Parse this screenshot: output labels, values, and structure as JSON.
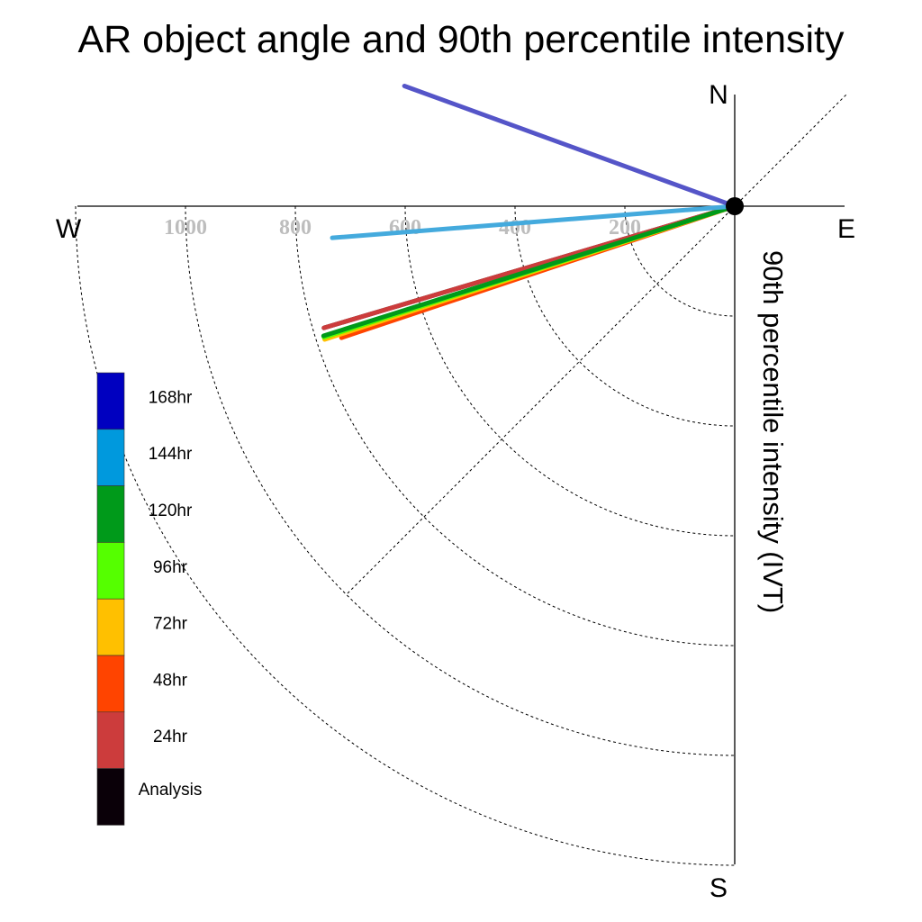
{
  "chart_data": {
    "type": "polar-vector",
    "title": "AR object angle and 90th percentile intensity",
    "ylabel": "90th percentile intensity (IVT)",
    "compass": {
      "north": "N",
      "south": "S",
      "east": "E",
      "west": "W"
    },
    "radial_ticks": [
      {
        "value": 200,
        "label": "200"
      },
      {
        "value": 400,
        "label": "400"
      },
      {
        "value": 600,
        "label": "600"
      },
      {
        "value": 800,
        "label": "800"
      },
      {
        "value": 1000,
        "label": "1000"
      }
    ],
    "radial_range": [
      0,
      1200
    ],
    "grid": true,
    "series": [
      {
        "name": "168hr",
        "color": "#0000c0",
        "line_color": "#5555c8",
        "angle_deg": 160,
        "intensity": 640
      },
      {
        "name": "144hr",
        "color": "#0099dd",
        "line_color": "#44aadd",
        "angle_deg": 184.5,
        "intensity": 735
      },
      {
        "name": "120hr",
        "color": "#009a1a",
        "line_color": "#009a1a",
        "angle_deg": 197.5,
        "intensity": 785
      },
      {
        "name": "96hr",
        "color": "#55ff00",
        "line_color": "#55ff00",
        "angle_deg": 197.7,
        "intensity": 785
      },
      {
        "name": "72hr",
        "color": "#ffc000",
        "line_color": "#ffc000",
        "angle_deg": 198,
        "intensity": 785
      },
      {
        "name": "48hr",
        "color": "#ff4400",
        "line_color": "#ff4400",
        "angle_deg": 198.5,
        "intensity": 755
      },
      {
        "name": "24hr",
        "color": "#cc3c3c",
        "line_color": "#cc3c3c",
        "angle_deg": 196.5,
        "intensity": 780
      },
      {
        "name": "Analysis",
        "color": "#0a0008",
        "line_color": "#222222",
        "angle_deg": 196.5,
        "intensity": 780
      }
    ],
    "legend_position": "left"
  }
}
